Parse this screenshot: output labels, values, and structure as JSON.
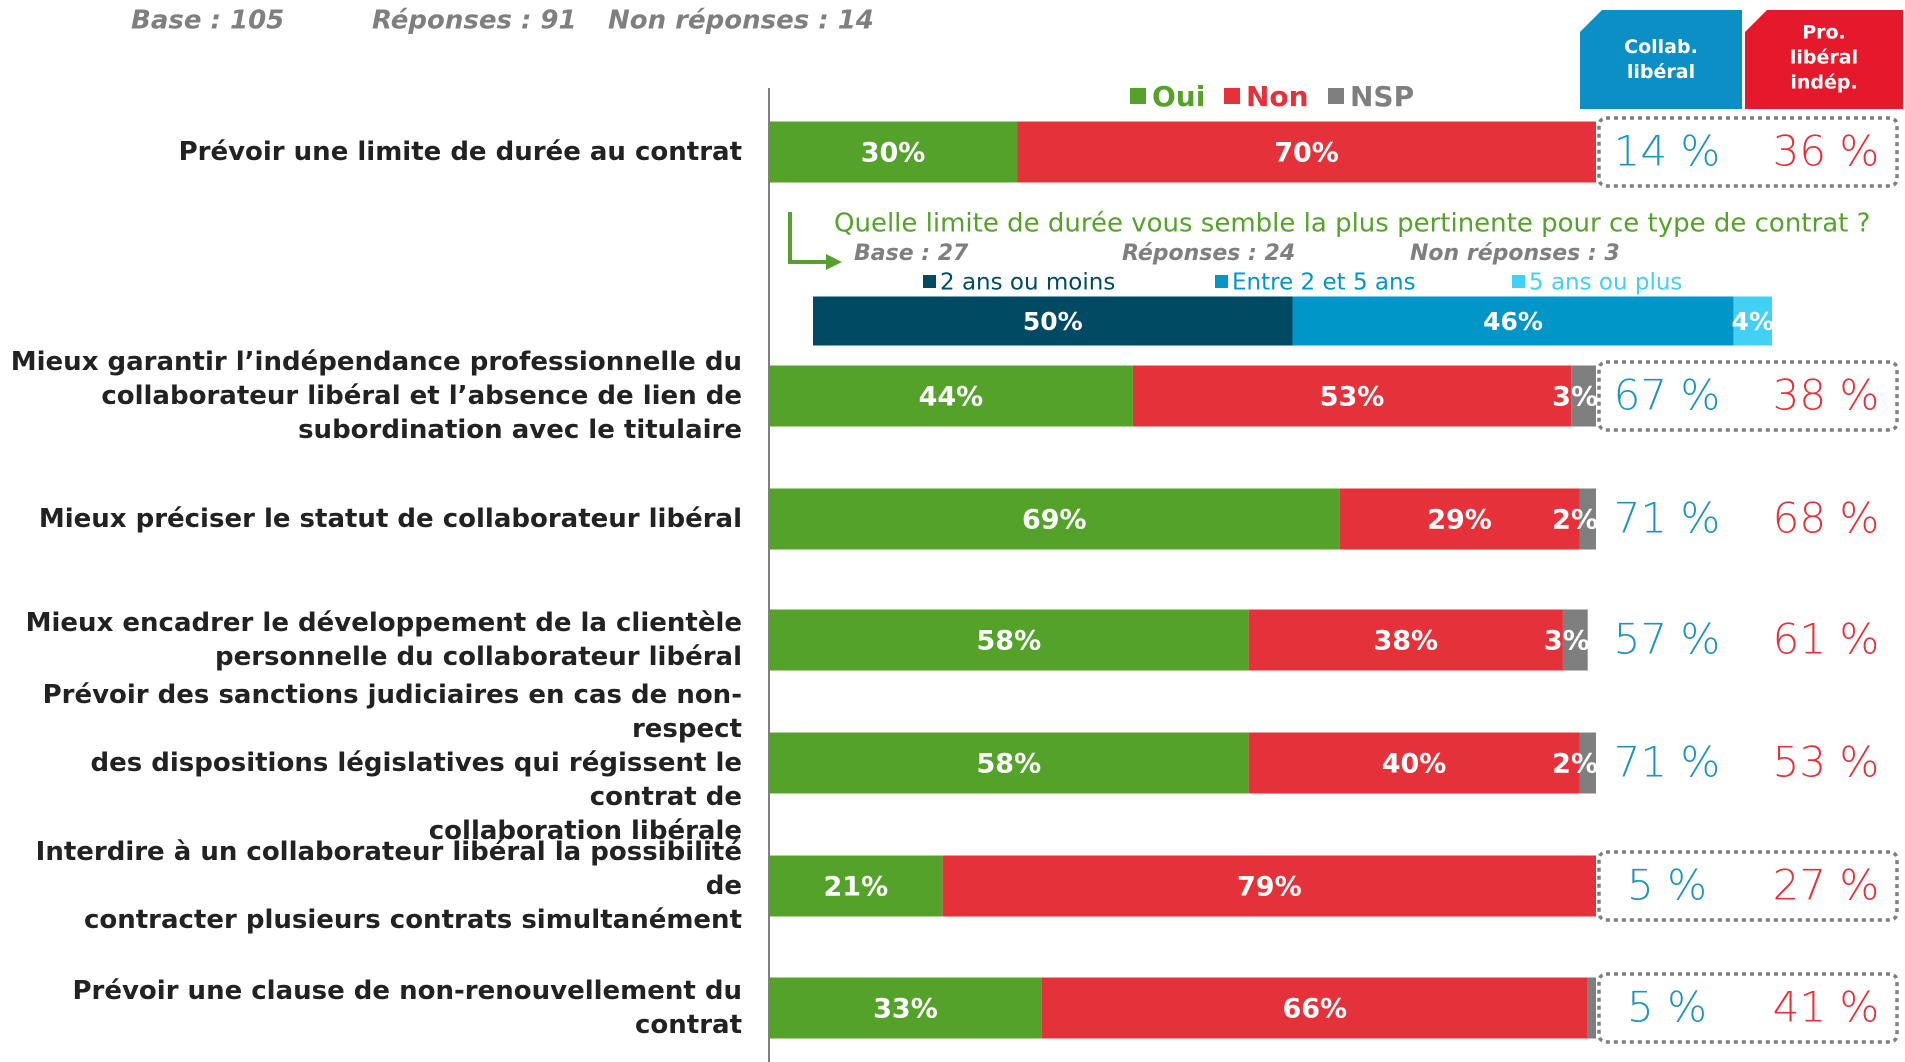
{
  "header": {
    "base": "Base : 105",
    "responses": "Réponses : 91",
    "non_responses": "Non réponses : 14"
  },
  "chart_data": [
    {
      "type": "bar",
      "orientation": "horizontal",
      "stacked": true,
      "legend": "top",
      "categories": [
        "Prévoir une limite de durée au contrat",
        "Mieux garantir l’indépendance professionnelle du\ncollaborateur libéral et l’absence de lien de\nsubordination avec le titulaire",
        "Mieux préciser le statut de collaborateur libéral",
        "Mieux encadrer le développement de la clientèle\npersonnelle du collaborateur libéral",
        "Prévoir des sanctions judiciaires en cas de non-respect\ndes dispositions législatives qui régissent le contrat de\ncollaboration libérale",
        "Interdire à un collaborateur libéral la possibilité de\ncontracter plusieurs contrats simultanément",
        "Prévoir une clause de non-renouvellement du contrat"
      ],
      "series": [
        {
          "name": "Oui",
          "color": "#55a22a",
          "values": [
            30,
            44,
            69,
            58,
            58,
            21,
            33
          ],
          "value_labels": [
            "30%",
            "44%",
            "69%",
            "58%",
            "58%",
            "21%",
            "33%"
          ]
        },
        {
          "name": "Non",
          "color": "#e5323a",
          "values": [
            70,
            53,
            29,
            38,
            40,
            79,
            66
          ],
          "value_labels": [
            "70%",
            "53%",
            "29%",
            "38%",
            "40%",
            "79%",
            "66%"
          ]
        },
        {
          "name": "NSP",
          "color": "#7f7f7f",
          "values": [
            0,
            3,
            2,
            3,
            2,
            0,
            1
          ],
          "value_labels": [
            null,
            "3%",
            "2%",
            "3%",
            "2%",
            null,
            null
          ]
        }
      ],
      "xlim": [
        0,
        100
      ],
      "side_columns": [
        {
          "name": "Collab.\nlibéral",
          "color": "#1f93bf",
          "values": [
            14,
            67,
            71,
            57,
            71,
            5,
            5
          ],
          "value_labels": [
            "14 %",
            "67 %",
            "71 %",
            "57 %",
            "71 %",
            "5 %",
            "5 %"
          ]
        },
        {
          "name": "Pro.\nlibéral\nindép.",
          "color": "#e5323a",
          "values": [
            36,
            38,
            68,
            61,
            53,
            27,
            41
          ],
          "value_labels": [
            "36 %",
            "38 %",
            "68 %",
            "61 %",
            "53 %",
            "27 %",
            "41 %"
          ]
        }
      ],
      "highlighted": [
        true,
        true,
        false,
        false,
        false,
        true,
        true
      ]
    },
    {
      "type": "bar",
      "orientation": "horizontal",
      "stacked": true,
      "legend": "top",
      "title": "Quelle limite de durée vous semble la plus pertinente pour ce type de contrat ?",
      "base": "Base : 27",
      "responses": "Réponses : 24",
      "non_responses": "Non réponses : 3",
      "categories": [
        null
      ],
      "series": [
        {
          "name": "2 ans ou moins",
          "color": "#004a63",
          "values": [
            50
          ],
          "value_labels": [
            "50%"
          ]
        },
        {
          "name": "Entre 2 et 5 ans",
          "color": "#0097c8",
          "values": [
            46
          ],
          "value_labels": [
            "46%"
          ]
        },
        {
          "name": "5 ans ou plus",
          "color": "#42d0f5",
          "values": [
            4
          ],
          "value_labels": [
            "4%"
          ]
        }
      ],
      "xlim": [
        0,
        100
      ]
    }
  ]
}
